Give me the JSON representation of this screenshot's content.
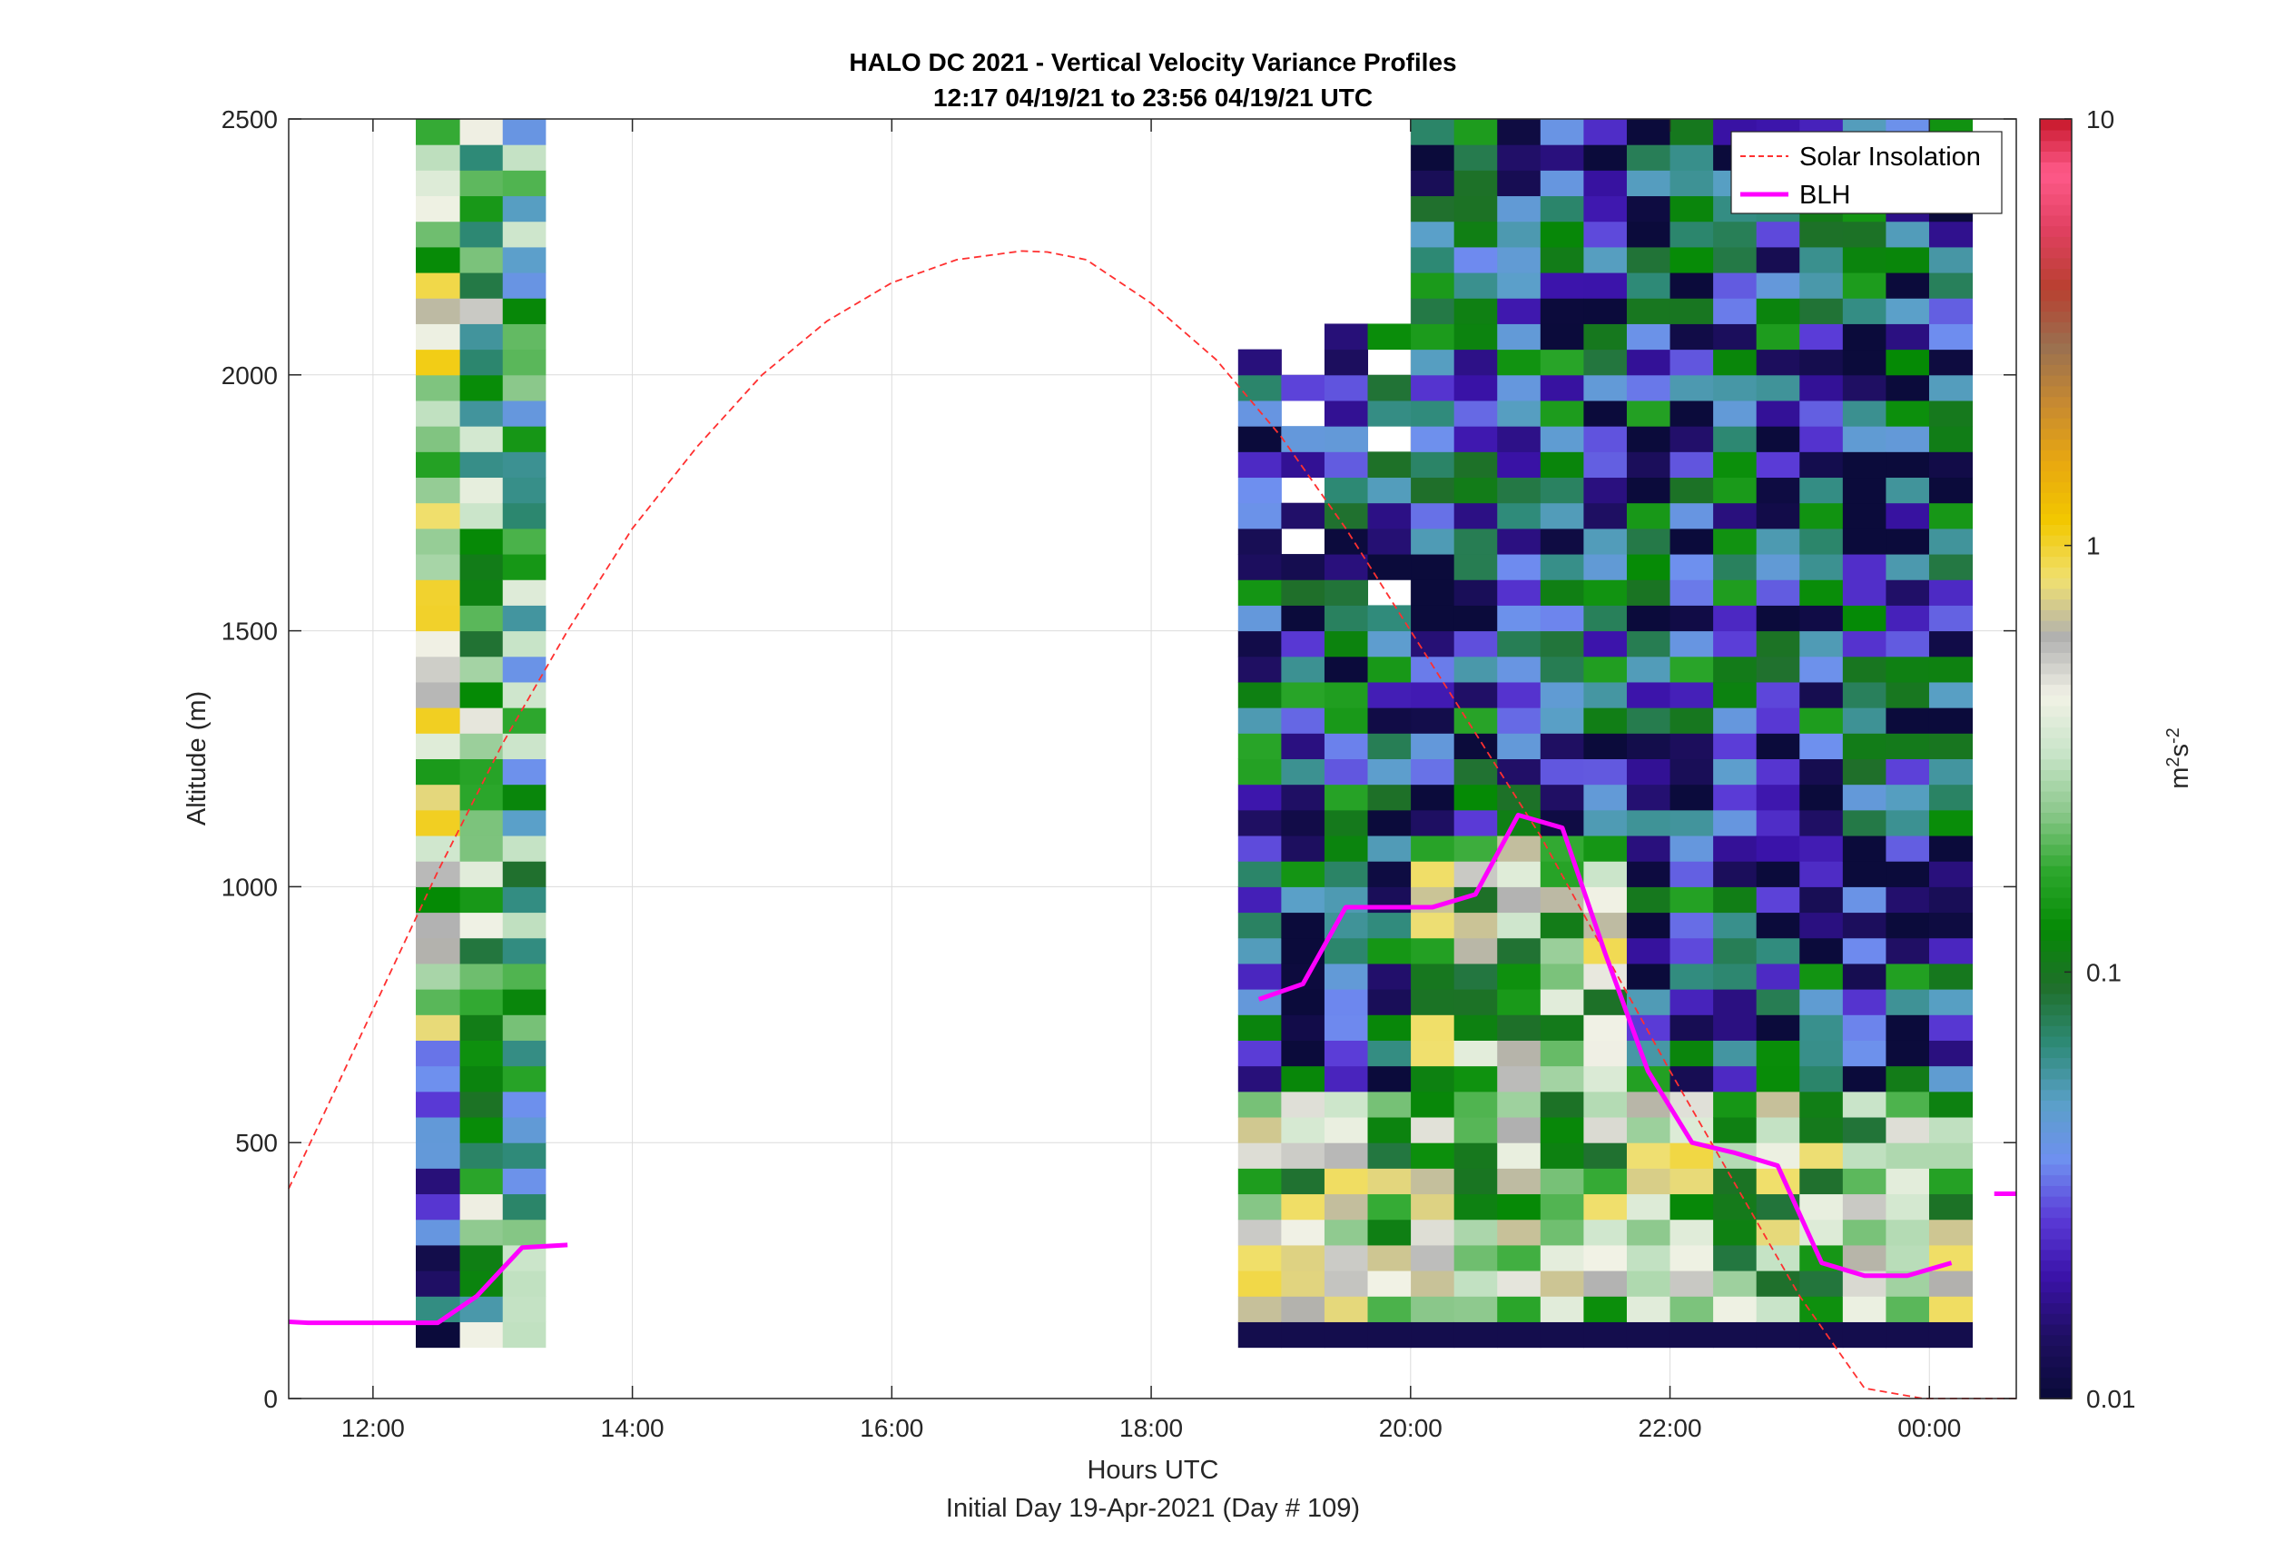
{
  "chart_data": {
    "type": "heatmap",
    "title": "HALO DC 2021 - Vertical Velocity Variance Profiles",
    "subtitle": "12:17 04/19/21 to 23:56 04/19/21  UTC",
    "xlabel": "Hours UTC",
    "xlabel2": "Initial Day 19-Apr-2021 (Day # 109)",
    "ylabel": "Altitude (m)",
    "x_ticks": [
      "12:00",
      "14:00",
      "16:00",
      "18:00",
      "20:00",
      "22:00",
      "00:00"
    ],
    "x_tick_hours": [
      12,
      14,
      16,
      18,
      20,
      22,
      24
    ],
    "y_ticks": [
      "0",
      "500",
      "1000",
      "1500",
      "2000",
      "2500"
    ],
    "y_tick_values": [
      0,
      500,
      1000,
      1500,
      2000,
      2500
    ],
    "xlim_hours": [
      11.35,
      24.67
    ],
    "ylim": [
      0,
      2500
    ],
    "grid": true,
    "colorbar": {
      "label_base": "m",
      "label_exp1": "2",
      "label_mid": "s",
      "label_exp2": "-2",
      "scale": "log",
      "ticks": [
        "0.01",
        "0.1",
        "1",
        "10"
      ],
      "tick_values": [
        0.01,
        0.1,
        1,
        10
      ],
      "colors": [
        "#0b0b3b",
        "#1f0f63",
        "#3a12a8",
        "#5a3ad6",
        "#6f8ff0",
        "#5aa0c8",
        "#2e8a78",
        "#1f6f2a",
        "#058a05",
        "#2ea82e",
        "#8cc88c",
        "#c8e4c8",
        "#f2f2e6",
        "#b0b0b0",
        "#f0e070",
        "#f2c800",
        "#e8a810",
        "#c88a30",
        "#9a7050",
        "#b84030",
        "#e04060",
        "#ff5a8a",
        "#c01020"
      ]
    },
    "legend": {
      "placement": "top-right",
      "entries": [
        {
          "name": "Solar Insolation",
          "color": "#ff3030",
          "style": "dashed"
        },
        {
          "name": "BLH",
          "color": "#ff00ff",
          "style": "solid"
        }
      ]
    },
    "blh_segments": [
      {
        "x": [
          11.35,
          11.5,
          12.0,
          12.5,
          12.8,
          13.15,
          13.5
        ],
        "y": [
          150,
          148,
          148,
          148,
          200,
          295,
          300
        ]
      },
      {
        "x": [
          18.83,
          19.17,
          19.5,
          19.83,
          20.17,
          20.5,
          20.83,
          21.17,
          21.5,
          21.83,
          22.17,
          22.5,
          22.83,
          23.17,
          23.5,
          23.83,
          24.17
        ],
        "y": [
          780,
          810,
          960,
          960,
          960,
          985,
          1140,
          1115,
          870,
          640,
          500,
          480,
          455,
          265,
          240,
          240,
          265
        ]
      },
      {
        "x": [
          24.5,
          24.67
        ],
        "y": [
          400,
          400
        ]
      }
    ],
    "solar_insolation": {
      "x": [
        11.35,
        12.0,
        12.5,
        13.0,
        13.5,
        14.0,
        14.5,
        15.0,
        15.5,
        16.0,
        16.5,
        17.0,
        17.2,
        17.5,
        18.0,
        18.5,
        19.0,
        19.5,
        20.0,
        20.5,
        21.0,
        21.5,
        22.0,
        22.5,
        23.0,
        23.5,
        23.95,
        24.67
      ],
      "y": [
        410,
        760,
        1030,
        1280,
        1500,
        1700,
        1860,
        2000,
        2105,
        2180,
        2225,
        2242,
        2240,
        2225,
        2140,
        2030,
        1880,
        1700,
        1500,
        1300,
        1100,
        870,
        640,
        420,
        200,
        20,
        0,
        0
      ]
    },
    "variance_grid_note": "cells colored by log10 variance (m2 s-2)"
  }
}
